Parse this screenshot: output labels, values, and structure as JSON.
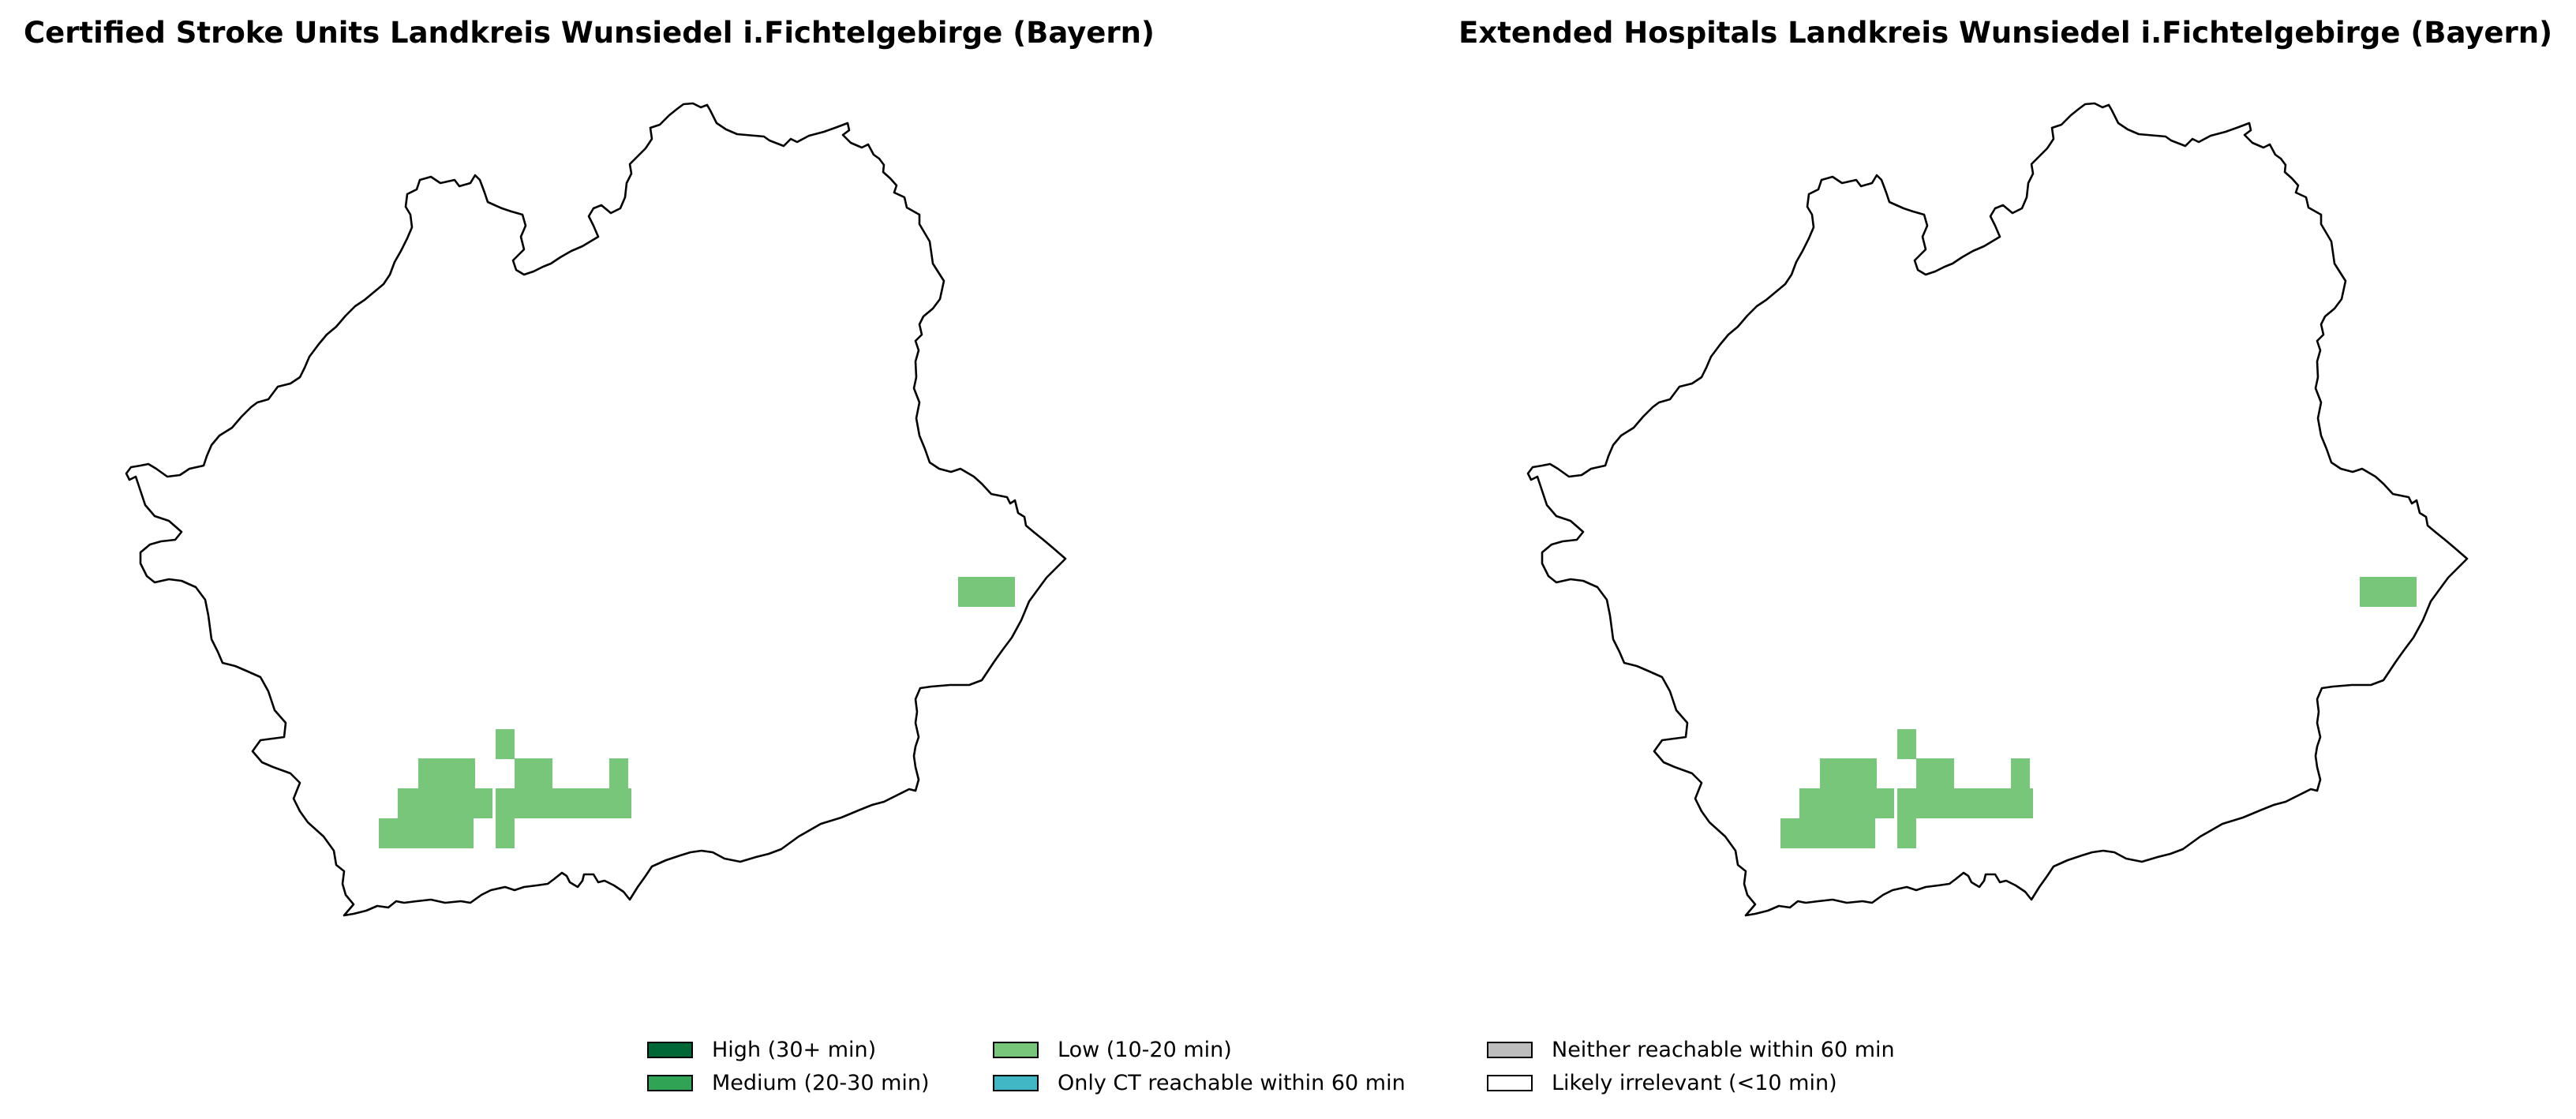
{
  "maps": [
    {
      "title": "Certified Stroke Units Landkreis Wunsiedel i.Fichtelgebirge (Bayern)",
      "category": "Low (10-20 min)"
    },
    {
      "title": "Extended Hospitals Landkreis Wunsiedel i.Fichtelgebirge (Bayern)",
      "category": "Low (10-20 min)"
    }
  ],
  "legend": {
    "items": [
      {
        "label": "High (30+ min)",
        "color": "#006837"
      },
      {
        "label": "Medium (20-30 min)",
        "color": "#31a354"
      },
      {
        "label": "Low (10-20 min)",
        "color": "#78c679"
      },
      {
        "label": "Only CT reachable within 60 min",
        "color": "#41b6c4"
      },
      {
        "label": "Neither reachable within 60 min",
        "color": "#bdbdbd"
      },
      {
        "label": "Likely irrelevant (<10 min)",
        "color": "#ffffff"
      }
    ]
  },
  "colors": {
    "boundary": "#000000",
    "background": "#ffffff"
  }
}
